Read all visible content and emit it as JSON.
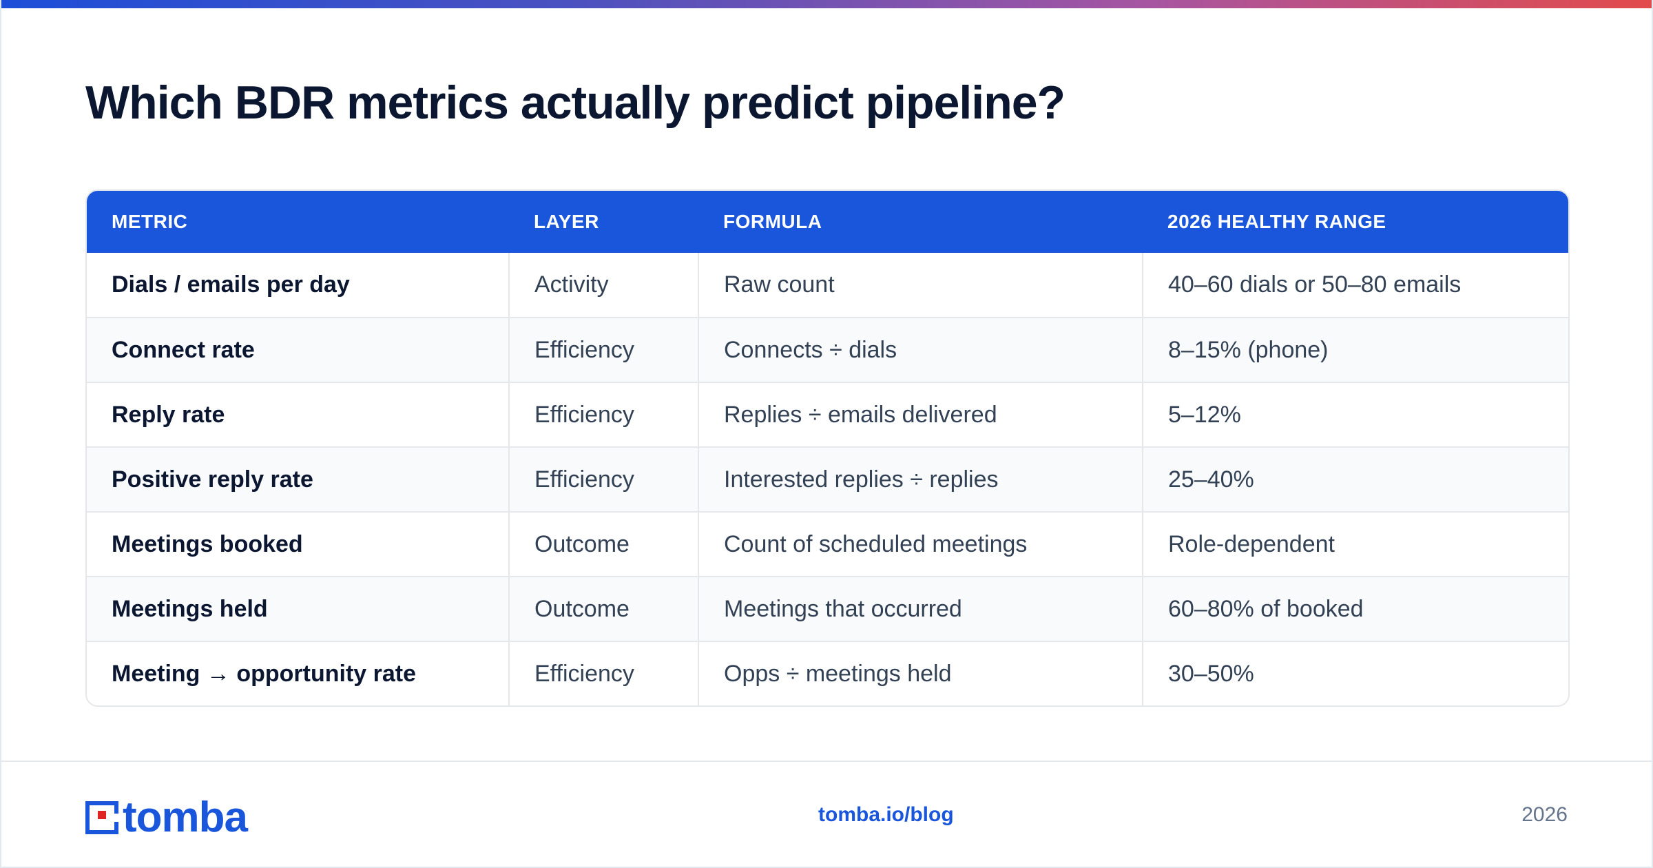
{
  "title": "Which BDR metrics actually predict pipeline?",
  "table": {
    "headers": [
      "METRIC",
      "LAYER",
      "FORMULA",
      "2026 HEALTHY RANGE"
    ],
    "rows": [
      {
        "metric": "Dials / emails per day",
        "layer": "Activity",
        "formula": "Raw count",
        "range": "40–60 dials or 50–80 emails"
      },
      {
        "metric": "Connect rate",
        "layer": "Efficiency",
        "formula": "Connects ÷ dials",
        "range": "8–15% (phone)"
      },
      {
        "metric": "Reply rate",
        "layer": "Efficiency",
        "formula": "Replies ÷ emails delivered",
        "range": "5–12%"
      },
      {
        "metric": "Positive reply rate",
        "layer": "Efficiency",
        "formula": "Interested replies ÷ replies",
        "range": "25–40%"
      },
      {
        "metric": "Meetings booked",
        "layer": "Outcome",
        "formula": "Count of scheduled meetings",
        "range": "Role-dependent"
      },
      {
        "metric": "Meetings held",
        "layer": "Outcome",
        "formula": "Meetings that occurred",
        "range": "60–80% of booked"
      },
      {
        "metric": "Meeting → opportunity rate",
        "layer": "Efficiency",
        "formula": "Opps ÷ meetings held",
        "range": "30–50%"
      }
    ]
  },
  "footer": {
    "logo": {
      "text": "tomba",
      "icon": "tomba-logo-icon"
    },
    "link": "tomba.io/blog",
    "year": "2026"
  },
  "colors": {
    "accent": "#1a56db",
    "heading": "#0b1630",
    "logo_red": "#e02424"
  }
}
